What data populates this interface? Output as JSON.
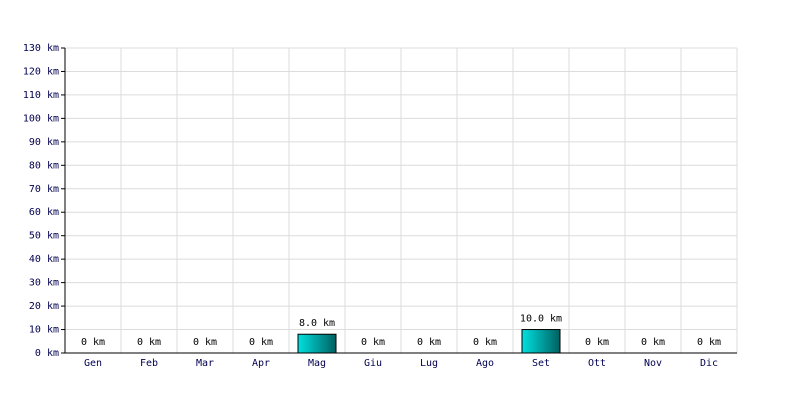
{
  "chart_data": {
    "type": "bar",
    "categories": [
      "Gen",
      "Feb",
      "Mar",
      "Apr",
      "Mag",
      "Giu",
      "Lug",
      "Ago",
      "Set",
      "Ott",
      "Nov",
      "Dic"
    ],
    "values": [
      0,
      0,
      0,
      0,
      8,
      0,
      0,
      0,
      10,
      0,
      0,
      0
    ],
    "value_labels": [
      "0 km",
      "0 km",
      "0 km",
      "0 km",
      "8.0 km",
      "0 km",
      "0 km",
      "0 km",
      "10.0 km",
      "0 km",
      "0 km",
      "0 km"
    ],
    "color": "#00e0e0",
    "ylim": [
      0,
      130
    ],
    "yticks": [
      {
        "value": 0,
        "label": "0 km"
      },
      {
        "value": 10,
        "label": "10 km"
      },
      {
        "value": 20,
        "label": "20 km"
      },
      {
        "value": 30,
        "label": "30 km"
      },
      {
        "value": 40,
        "label": "40 km"
      },
      {
        "value": 50,
        "label": "50 km"
      },
      {
        "value": 60,
        "label": "60 km"
      },
      {
        "value": 70,
        "label": "70 km"
      },
      {
        "value": 80,
        "label": "80 km"
      },
      {
        "value": 90,
        "label": "90 km"
      },
      {
        "value": 100,
        "label": "100 km"
      },
      {
        "value": 110,
        "label": "110 km"
      },
      {
        "value": 120,
        "label": "120 km"
      },
      {
        "value": 130,
        "label": "130 km"
      }
    ],
    "grid": true
  }
}
